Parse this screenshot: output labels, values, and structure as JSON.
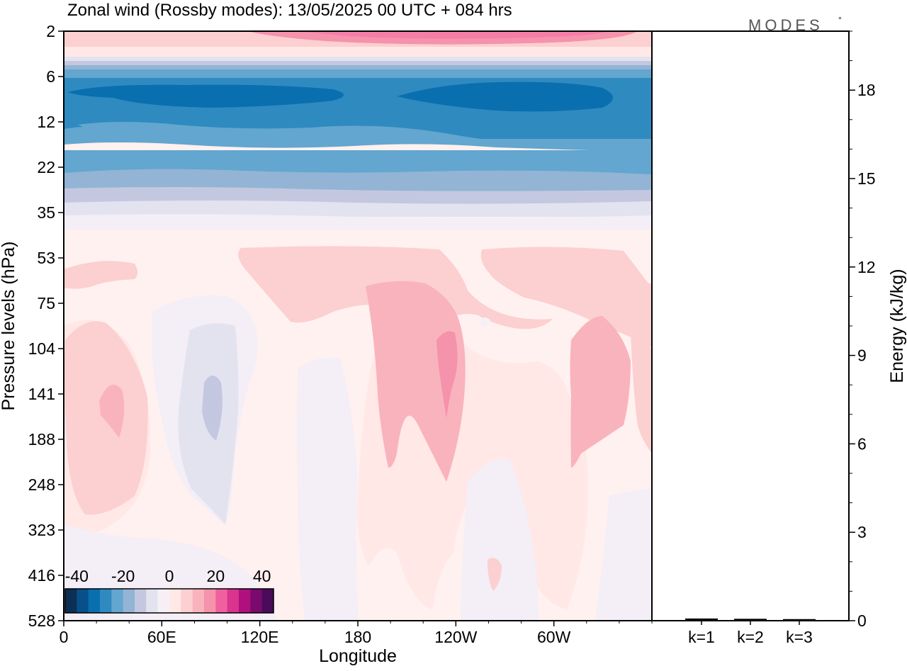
{
  "title": "Zonal wind (Rossby modes):  13/05/2025  00 UTC  + 084 hrs",
  "logo": "MODES",
  "logo_mark": "°",
  "chart_data": [
    {
      "type": "heatmap",
      "variable": "Zonal wind",
      "xlabel": "Longitude",
      "ylabel": "Pressure levels (hPa)",
      "x_ticks": [
        "0",
        "60E",
        "120E",
        "180",
        "120W",
        "60W"
      ],
      "x_range_deg": [
        0,
        360
      ],
      "y_ticks": [
        "2",
        "6",
        "12",
        "22",
        "35",
        "53",
        "75",
        "104",
        "141",
        "188",
        "248",
        "323",
        "416",
        "528"
      ],
      "y_scale": "model levels (nonuniform)",
      "colorbar": {
        "ticks": [
          "-40",
          "-20",
          "0",
          "20",
          "40"
        ],
        "range": [
          -45,
          45
        ],
        "colors": [
          "#0b2f55",
          "#08508a",
          "#0a6fae",
          "#2f8ac0",
          "#63a6cf",
          "#93b4d4",
          "#c3c8e0",
          "#e3e3f0",
          "#f6f0f6",
          "#ffe8e6",
          "#fccfd0",
          "#f9b3bc",
          "#f592ac",
          "#f0609e",
          "#d9348e",
          "#b0107d",
          "#7a0a6e",
          "#4a0b5a"
        ]
      },
      "regions": [
        {
          "level": "2",
          "lon_range": [
            0,
            360
          ],
          "value": 15
        },
        {
          "level": "2",
          "lon_range": [
            150,
            240
          ],
          "value": 25
        },
        {
          "level": "4",
          "lon_range": [
            0,
            360
          ],
          "value": 5
        },
        {
          "level": "6",
          "lon_range": [
            0,
            360
          ],
          "value": -15
        },
        {
          "level": "8",
          "lon_range": [
            0,
            360
          ],
          "value": -30
        },
        {
          "level": "8",
          "lon_range": [
            10,
            130
          ],
          "value": -35
        },
        {
          "level": "8",
          "lon_range": [
            220,
            330
          ],
          "value": -35
        },
        {
          "level": "12",
          "lon_range": [
            0,
            360
          ],
          "value": -25
        },
        {
          "level": "16",
          "lon_range": [
            0,
            360
          ],
          "value": -20
        },
        {
          "level": "22",
          "lon_range": [
            0,
            360
          ],
          "value": -15
        },
        {
          "level": "28",
          "lon_range": [
            0,
            360
          ],
          "value": -10
        },
        {
          "level": "35",
          "lon_range": [
            0,
            360
          ],
          "value": -5
        },
        {
          "level": "53-248",
          "lon_range": [
            110,
            235
          ],
          "value": 5
        },
        {
          "level": "75-188",
          "lon_range": [
            185,
            250
          ],
          "value": 10
        },
        {
          "level": "104-188",
          "lon_range": [
            230,
            250
          ],
          "value": 20
        },
        {
          "level": "104-188",
          "lon_range": [
            5,
            50
          ],
          "value": 5
        },
        {
          "level": "141",
          "lon_range": [
            20,
            40
          ],
          "value": 10
        },
        {
          "level": "104-248",
          "lon_range": [
            60,
            100
          ],
          "value": -5
        },
        {
          "level": "141",
          "lon_range": [
            82,
            94
          ],
          "value": -10
        },
        {
          "level": "104-188",
          "lon_range": [
            310,
            345
          ],
          "value": 10
        }
      ]
    },
    {
      "type": "bar",
      "categories": [
        "k=1",
        "k=2",
        "k=3"
      ],
      "values": [
        0.05,
        0.04,
        0.03
      ],
      "ylabel": "Energy (kJ/kg)",
      "ylim": [
        0,
        20
      ],
      "y_ticks": [
        "0",
        "3",
        "6",
        "9",
        "12",
        "15",
        "18"
      ]
    }
  ]
}
